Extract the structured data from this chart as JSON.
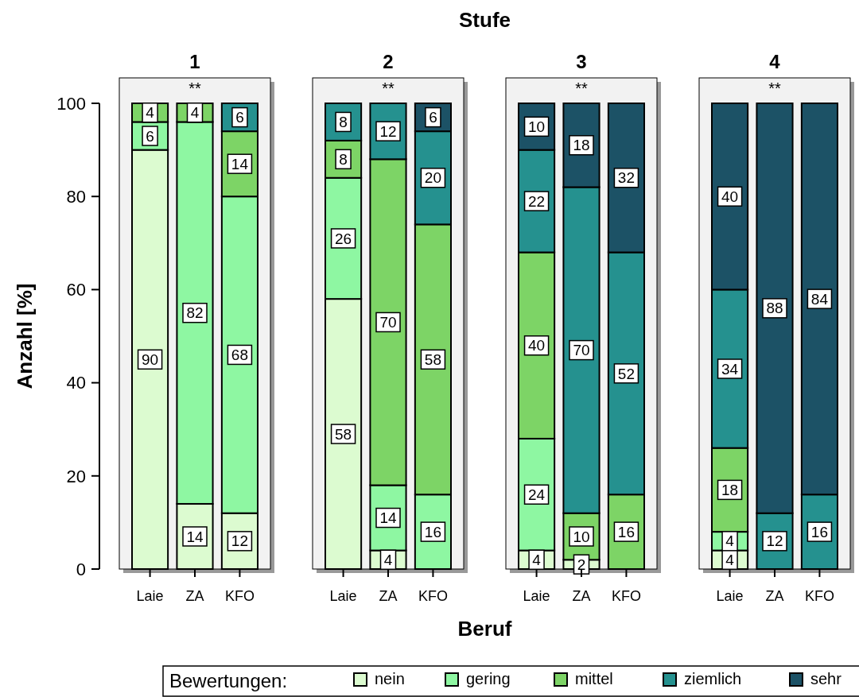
{
  "chart_data": [
    {
      "type": "other",
      "title": "Stufe",
      "annotations": [
        "Beruf"
      ]
    },
    {
      "type": "bar",
      "title": "1",
      "ylabel": "Anzahl [%]",
      "legend": "bottom",
      "legend_title": "Bewertungen:",
      "annotations": [
        "**"
      ],
      "stacked": true,
      "data_labels": true,
      "ylim": [
        0,
        100
      ],
      "yticks": [
        0,
        20,
        40,
        60,
        80,
        100
      ],
      "categories": [
        "Laie",
        "ZA",
        "KFO"
      ],
      "series": [
        {
          "name": "nein",
          "color": "#dcfbd0",
          "values": [
            90,
            14,
            12
          ]
        },
        {
          "name": "gering",
          "color": "#8ef7a2",
          "values": [
            6,
            82,
            68
          ]
        },
        {
          "name": "mittel",
          "color": "#7dd466",
          "values": [
            4,
            4,
            14
          ]
        },
        {
          "name": "ziemlich",
          "color": "#25918f",
          "values": [
            null,
            null,
            6
          ]
        },
        {
          "name": "sehr",
          "color": "#1c5266",
          "values": [
            null,
            null,
            null
          ]
        }
      ]
    },
    {
      "type": "bar",
      "title": "2",
      "annotations": [
        "**"
      ],
      "stacked": true,
      "data_labels": true,
      "tick_labels": "x",
      "ylim": [
        0,
        100
      ],
      "categories": [
        "Laie",
        "ZA",
        "KFO"
      ],
      "series": [
        {
          "color": "#dcfbd0",
          "values": [
            58,
            4,
            null
          ]
        },
        {
          "color": "#8ef7a2",
          "values": [
            26,
            14,
            16
          ]
        },
        {
          "color": "#7dd466",
          "values": [
            8,
            70,
            58
          ]
        },
        {
          "color": "#25918f",
          "values": [
            8,
            12,
            20
          ]
        },
        {
          "color": "#1c5266",
          "values": [
            null,
            null,
            6
          ]
        }
      ]
    },
    {
      "type": "bar",
      "title": "3",
      "annotations": [
        "**"
      ],
      "stacked": true,
      "data_labels": true,
      "tick_labels": "x",
      "ylim": [
        0,
        100
      ],
      "categories": [
        "Laie",
        "ZA",
        "KFO"
      ],
      "series": [
        {
          "color": "#dcfbd0",
          "values": [
            4,
            2,
            null
          ]
        },
        {
          "color": "#8ef7a2",
          "values": [
            24,
            null,
            null
          ]
        },
        {
          "color": "#7dd466",
          "values": [
            40,
            10,
            16
          ]
        },
        {
          "color": "#25918f",
          "values": [
            22,
            70,
            52
          ]
        },
        {
          "color": "#1c5266",
          "values": [
            10,
            18,
            32
          ]
        }
      ]
    },
    {
      "type": "bar",
      "title": "4",
      "annotations": [
        "**"
      ],
      "stacked": true,
      "data_labels": true,
      "tick_labels": "x",
      "ylim": [
        0,
        100
      ],
      "categories": [
        "Laie",
        "ZA",
        "KFO"
      ],
      "series": [
        {
          "color": "#dcfbd0",
          "values": [
            4,
            null,
            null
          ]
        },
        {
          "color": "#8ef7a2",
          "values": [
            4,
            null,
            null
          ]
        },
        {
          "color": "#7dd466",
          "values": [
            18,
            null,
            null
          ]
        },
        {
          "color": "#25918f",
          "values": [
            34,
            12,
            16
          ]
        },
        {
          "color": "#1c5266",
          "values": [
            40,
            88,
            84
          ]
        }
      ]
    }
  ]
}
